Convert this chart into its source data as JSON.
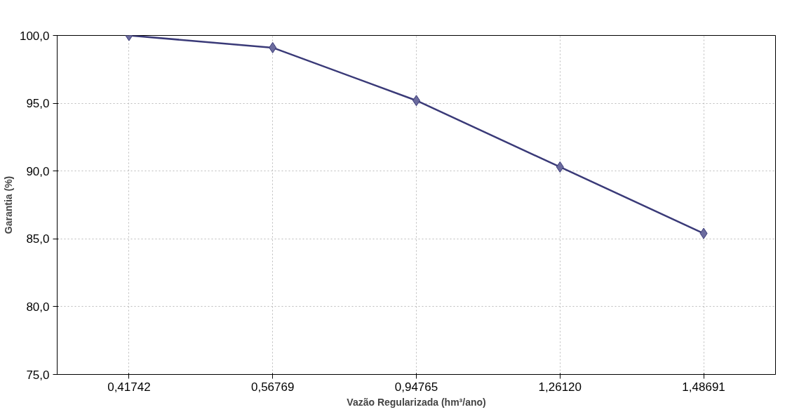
{
  "chart_data": {
    "type": "line",
    "xlabel": "Vazão Regularizada (hm³/ano)",
    "ylabel": "Garantia (%)",
    "categories": [
      "0,41742",
      "0,56769",
      "0,94765",
      "1,26120",
      "1,48691"
    ],
    "series": [
      {
        "color": "#3a3a78",
        "values": [
          100.0,
          99.1,
          95.2,
          90.3,
          85.4
        ]
      }
    ],
    "ylim": [
      75,
      100
    ],
    "yticks": [
      {
        "value": 75,
        "label": "75,0"
      },
      {
        "value": 80,
        "label": "80,0"
      },
      {
        "value": 85,
        "label": "85,0"
      },
      {
        "value": 90,
        "label": "90,0"
      },
      {
        "value": 95,
        "label": "95,0"
      },
      {
        "value": 100,
        "label": "100,0"
      }
    ],
    "grid": true,
    "marker": "diamond",
    "line_style": "solid"
  }
}
